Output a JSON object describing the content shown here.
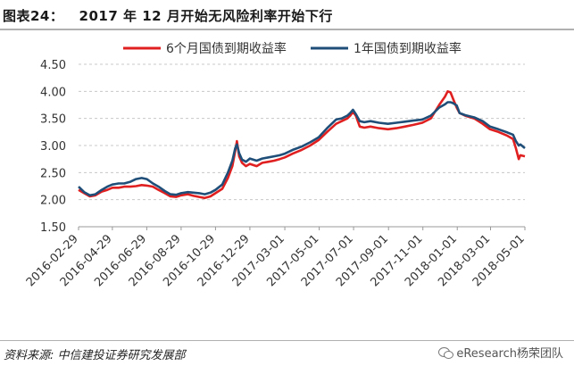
{
  "figure": {
    "title": "图表24：   2017 年 12 月开始无风险利率开始下行",
    "source": "资料来源: 中信建投证券研究发展部",
    "watermark": "eResearch杨荣团队"
  },
  "chart_data": {
    "type": "line",
    "title": "2017 年 12 月开始无风险利率开始下行",
    "xlabel": "",
    "ylabel": "",
    "ylim": [
      1.5,
      4.5
    ],
    "yticks": [
      "4.50",
      "4.00",
      "3.50",
      "3.00",
      "2.50",
      "2.00",
      "1.50"
    ],
    "ytick_values": [
      4.5,
      4.0,
      3.5,
      3.0,
      2.5,
      2.0,
      1.5
    ],
    "xlim": [
      "2016-02-29",
      "2018-05-01"
    ],
    "xticks": [
      "2016-02-29",
      "2016-04-29",
      "2016-06-29",
      "2016-08-29",
      "2016-10-29",
      "2016-12-29",
      "2017-03-01",
      "2017-05-01",
      "2017-07-01",
      "2017-09-01",
      "2017-11-01",
      "2018-01-01",
      "2018-03-01",
      "2018-05-01"
    ],
    "grid": true,
    "legend_position": "top",
    "series": [
      {
        "name": "6个月国债到期收益率",
        "color": "#e02020",
        "points": [
          [
            "2016-02-29",
            2.18
          ],
          [
            "2016-03-10",
            2.12
          ],
          [
            "2016-03-20",
            2.06
          ],
          [
            "2016-03-30",
            2.08
          ],
          [
            "2016-04-10",
            2.15
          ],
          [
            "2016-04-20",
            2.18
          ],
          [
            "2016-04-29",
            2.22
          ],
          [
            "2016-05-10",
            2.22
          ],
          [
            "2016-05-20",
            2.24
          ],
          [
            "2016-05-31",
            2.24
          ],
          [
            "2016-06-10",
            2.25
          ],
          [
            "2016-06-20",
            2.27
          ],
          [
            "2016-06-29",
            2.26
          ],
          [
            "2016-07-10",
            2.24
          ],
          [
            "2016-07-20",
            2.18
          ],
          [
            "2016-07-31",
            2.12
          ],
          [
            "2016-08-10",
            2.06
          ],
          [
            "2016-08-20",
            2.05
          ],
          [
            "2016-08-29",
            2.08
          ],
          [
            "2016-09-10",
            2.1
          ],
          [
            "2016-09-20",
            2.07
          ],
          [
            "2016-09-30",
            2.05
          ],
          [
            "2016-10-10",
            2.03
          ],
          [
            "2016-10-20",
            2.06
          ],
          [
            "2016-10-29",
            2.12
          ],
          [
            "2016-11-10",
            2.2
          ],
          [
            "2016-11-20",
            2.4
          ],
          [
            "2016-11-28",
            2.62
          ],
          [
            "2016-12-03",
            2.9
          ],
          [
            "2016-12-06",
            3.08
          ],
          [
            "2016-12-10",
            2.8
          ],
          [
            "2016-12-15",
            2.68
          ],
          [
            "2016-12-22",
            2.62
          ],
          [
            "2016-12-29",
            2.66
          ],
          [
            "2017-01-10",
            2.62
          ],
          [
            "2017-01-20",
            2.68
          ],
          [
            "2017-01-31",
            2.7
          ],
          [
            "2017-02-10",
            2.72
          ],
          [
            "2017-02-20",
            2.75
          ],
          [
            "2017-03-01",
            2.78
          ],
          [
            "2017-03-15",
            2.85
          ],
          [
            "2017-03-31",
            2.92
          ],
          [
            "2017-04-15",
            3.0
          ],
          [
            "2017-04-30",
            3.1
          ],
          [
            "2017-05-15",
            3.25
          ],
          [
            "2017-05-31",
            3.4
          ],
          [
            "2017-06-10",
            3.45
          ],
          [
            "2017-06-20",
            3.5
          ],
          [
            "2017-06-25",
            3.55
          ],
          [
            "2017-06-30",
            3.62
          ],
          [
            "2017-07-05",
            3.55
          ],
          [
            "2017-07-12",
            3.35
          ],
          [
            "2017-07-20",
            3.33
          ],
          [
            "2017-07-31",
            3.35
          ],
          [
            "2017-08-15",
            3.32
          ],
          [
            "2017-08-31",
            3.3
          ],
          [
            "2017-09-15",
            3.32
          ],
          [
            "2017-09-30",
            3.35
          ],
          [
            "2017-10-15",
            3.38
          ],
          [
            "2017-10-31",
            3.42
          ],
          [
            "2017-11-15",
            3.5
          ],
          [
            "2017-11-30",
            3.75
          ],
          [
            "2017-12-10",
            3.9
          ],
          [
            "2017-12-15",
            4.0
          ],
          [
            "2017-12-20",
            3.98
          ],
          [
            "2017-12-25",
            3.85
          ],
          [
            "2017-12-31",
            3.7
          ],
          [
            "2018-01-05",
            3.6
          ],
          [
            "2018-01-15",
            3.55
          ],
          [
            "2018-01-31",
            3.5
          ],
          [
            "2018-02-15",
            3.4
          ],
          [
            "2018-02-28",
            3.3
          ],
          [
            "2018-03-15",
            3.25
          ],
          [
            "2018-03-31",
            3.18
          ],
          [
            "2018-04-10",
            3.12
          ],
          [
            "2018-04-15",
            2.95
          ],
          [
            "2018-04-20",
            2.75
          ],
          [
            "2018-04-23",
            2.82
          ],
          [
            "2018-05-01",
            2.8
          ]
        ]
      },
      {
        "name": "1年国债到期收益率",
        "color": "#1f4e79",
        "points": [
          [
            "2016-02-29",
            2.24
          ],
          [
            "2016-03-10",
            2.14
          ],
          [
            "2016-03-20",
            2.08
          ],
          [
            "2016-03-30",
            2.1
          ],
          [
            "2016-04-10",
            2.18
          ],
          [
            "2016-04-20",
            2.24
          ],
          [
            "2016-04-29",
            2.28
          ],
          [
            "2016-05-10",
            2.3
          ],
          [
            "2016-05-20",
            2.3
          ],
          [
            "2016-05-31",
            2.33
          ],
          [
            "2016-06-10",
            2.38
          ],
          [
            "2016-06-20",
            2.4
          ],
          [
            "2016-06-29",
            2.38
          ],
          [
            "2016-07-10",
            2.3
          ],
          [
            "2016-07-20",
            2.24
          ],
          [
            "2016-07-31",
            2.16
          ],
          [
            "2016-08-10",
            2.1
          ],
          [
            "2016-08-20",
            2.09
          ],
          [
            "2016-08-29",
            2.12
          ],
          [
            "2016-09-10",
            2.14
          ],
          [
            "2016-09-20",
            2.13
          ],
          [
            "2016-09-30",
            2.12
          ],
          [
            "2016-10-10",
            2.1
          ],
          [
            "2016-10-20",
            2.13
          ],
          [
            "2016-10-29",
            2.18
          ],
          [
            "2016-11-10",
            2.28
          ],
          [
            "2016-11-20",
            2.5
          ],
          [
            "2016-11-28",
            2.72
          ],
          [
            "2016-12-03",
            2.95
          ],
          [
            "2016-12-06",
            3.02
          ],
          [
            "2016-12-10",
            2.86
          ],
          [
            "2016-12-15",
            2.74
          ],
          [
            "2016-12-22",
            2.7
          ],
          [
            "2016-12-29",
            2.76
          ],
          [
            "2017-01-10",
            2.72
          ],
          [
            "2017-01-20",
            2.76
          ],
          [
            "2017-01-31",
            2.78
          ],
          [
            "2017-02-10",
            2.8
          ],
          [
            "2017-02-20",
            2.82
          ],
          [
            "2017-03-01",
            2.85
          ],
          [
            "2017-03-15",
            2.92
          ],
          [
            "2017-03-31",
            2.98
          ],
          [
            "2017-04-15",
            3.06
          ],
          [
            "2017-04-30",
            3.15
          ],
          [
            "2017-05-15",
            3.32
          ],
          [
            "2017-05-31",
            3.48
          ],
          [
            "2017-06-10",
            3.5
          ],
          [
            "2017-06-20",
            3.55
          ],
          [
            "2017-06-25",
            3.6
          ],
          [
            "2017-06-30",
            3.66
          ],
          [
            "2017-07-05",
            3.58
          ],
          [
            "2017-07-12",
            3.45
          ],
          [
            "2017-07-20",
            3.43
          ],
          [
            "2017-07-31",
            3.45
          ],
          [
            "2017-08-15",
            3.42
          ],
          [
            "2017-08-31",
            3.4
          ],
          [
            "2017-09-15",
            3.42
          ],
          [
            "2017-09-30",
            3.44
          ],
          [
            "2017-10-15",
            3.46
          ],
          [
            "2017-10-31",
            3.48
          ],
          [
            "2017-11-15",
            3.55
          ],
          [
            "2017-11-30",
            3.7
          ],
          [
            "2017-12-10",
            3.76
          ],
          [
            "2017-12-15",
            3.8
          ],
          [
            "2017-12-20",
            3.8
          ],
          [
            "2017-12-25",
            3.78
          ],
          [
            "2017-12-31",
            3.74
          ],
          [
            "2018-01-05",
            3.6
          ],
          [
            "2018-01-15",
            3.56
          ],
          [
            "2018-01-31",
            3.52
          ],
          [
            "2018-02-15",
            3.45
          ],
          [
            "2018-02-28",
            3.35
          ],
          [
            "2018-03-15",
            3.3
          ],
          [
            "2018-03-31",
            3.24
          ],
          [
            "2018-04-10",
            3.2
          ],
          [
            "2018-04-15",
            3.08
          ],
          [
            "2018-04-20",
            3.0
          ],
          [
            "2018-04-23",
            3.02
          ],
          [
            "2018-05-01",
            2.95
          ]
        ]
      }
    ]
  }
}
